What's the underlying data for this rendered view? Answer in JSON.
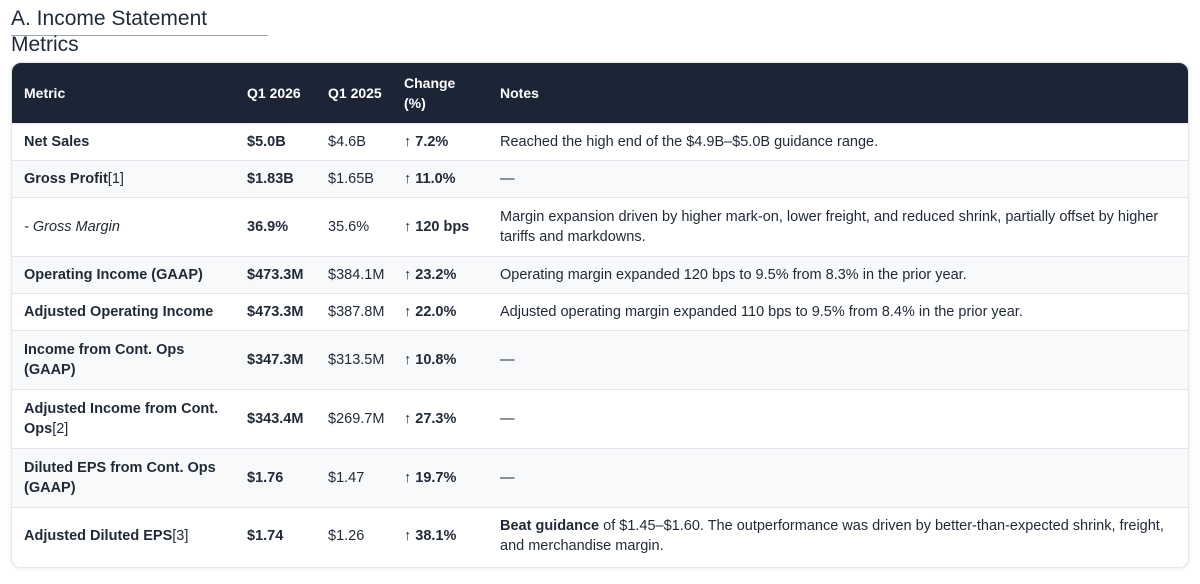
{
  "section": {
    "title": "A. Income Statement Metrics"
  },
  "table": {
    "headers": {
      "metric": "Metric",
      "q1_2026": "Q1 2026",
      "q1_2025": "Q1 2025",
      "change_line1": "Change",
      "change_line2": "(%)",
      "notes": "Notes"
    },
    "rows": [
      {
        "metric": "Net Sales",
        "footnote": "",
        "q1_2026": "$5.0B",
        "q1_2025": "$4.6B",
        "arrow": "↑",
        "change": "7.2%",
        "notes_bold": "",
        "notes": "Reached the high end of the $4.9B–$5.0B guidance range."
      },
      {
        "metric": "Gross Profit",
        "footnote": "[1]",
        "q1_2026": "$1.83B",
        "q1_2025": "$1.65B",
        "arrow": "↑",
        "change": "11.0%",
        "notes_bold": "",
        "notes": "—"
      },
      {
        "metric": "- Gross Margin",
        "footnote": "",
        "q1_2026": "36.9%",
        "q1_2025": "35.6%",
        "arrow": "↑",
        "change": "120 bps",
        "notes_bold": "",
        "notes": "Margin expansion driven by higher mark-on, lower freight, and reduced shrink, partially offset by higher tariffs and markdowns."
      },
      {
        "metric": "Operating Income (GAAP)",
        "footnote": "",
        "q1_2026": "$473.3M",
        "q1_2025": "$384.1M",
        "arrow": "↑",
        "change": "23.2%",
        "notes_bold": "",
        "notes": "Operating margin expanded 120 bps to 9.5% from 8.3% in the prior year."
      },
      {
        "metric": "Adjusted Operating Income",
        "footnote": "",
        "q1_2026": "$473.3M",
        "q1_2025": "$387.8M",
        "arrow": "↑",
        "change": "22.0%",
        "notes_bold": "",
        "notes": "Adjusted operating margin expanded 110 bps to 9.5% from 8.4% in the prior year."
      },
      {
        "metric": "Income from Cont. Ops (GAAP)",
        "footnote": "",
        "q1_2026": "$347.3M",
        "q1_2025": "$313.5M",
        "arrow": "↑",
        "change": "10.8%",
        "notes_bold": "",
        "notes": "—"
      },
      {
        "metric": "Adjusted Income from Cont. Ops",
        "footnote": "[2]",
        "q1_2026": "$343.4M",
        "q1_2025": "$269.7M",
        "arrow": "↑",
        "change": "27.3%",
        "notes_bold": "",
        "notes": "—"
      },
      {
        "metric": "Diluted EPS from Cont. Ops (GAAP)",
        "footnote": "",
        "q1_2026": "$1.76",
        "q1_2025": "$1.47",
        "arrow": "↑",
        "change": "19.7%",
        "notes_bold": "",
        "notes": "—"
      },
      {
        "metric": "Adjusted Diluted EPS",
        "footnote": "[3]",
        "q1_2026": "$1.74",
        "q1_2025": "$1.26",
        "arrow": "↑",
        "change": "38.1%",
        "notes_bold": "Beat guidance",
        "notes": " of $1.45–$1.60. The outperformance was driven by better-than-expected shrink, freight, and merchandise margin."
      }
    ]
  }
}
